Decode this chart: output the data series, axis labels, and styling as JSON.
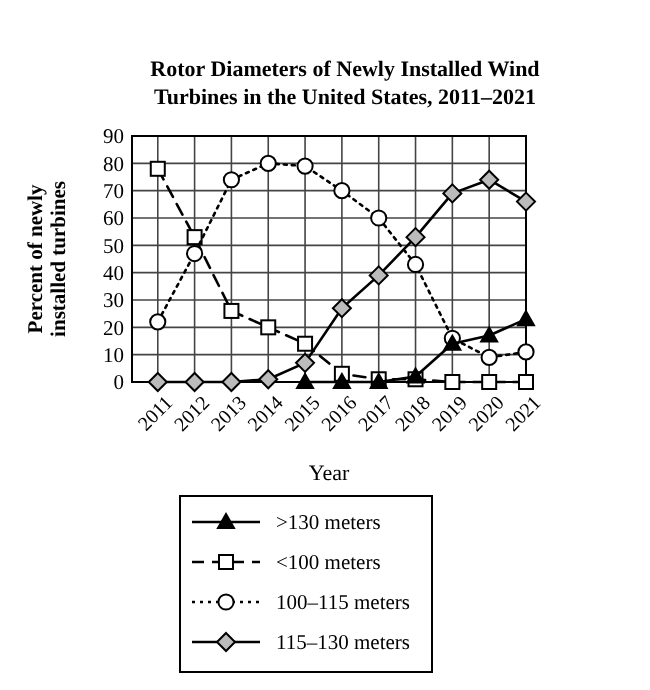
{
  "chart_data": {
    "type": "line",
    "title": "Rotor Diameters of Newly Installed Wind Turbines in the United States, 2011–2021",
    "xlabel": "Year",
    "ylabel": "Percent of newly installed turbines",
    "categories": [
      "2011",
      "2012",
      "2013",
      "2014",
      "2015",
      "2016",
      "2017",
      "2018",
      "2019",
      "2020",
      "2021"
    ],
    "ylim": [
      0,
      90
    ],
    "yticks": [
      0,
      10,
      20,
      30,
      40,
      50,
      60,
      70,
      80,
      90
    ],
    "grid": true,
    "legend": "bottom",
    "series": [
      {
        "name": ">130 meters",
        "color": "#000000",
        "marker": "triangle",
        "line_style": "solid",
        "values": [
          null,
          null,
          null,
          null,
          0,
          0,
          0,
          2,
          14,
          17,
          23
        ]
      },
      {
        "name": "<100 meters",
        "color": "#000000",
        "marker": "square",
        "line_style": "dashed",
        "values": [
          78,
          53,
          26,
          20,
          14,
          3,
          1,
          1,
          0,
          0,
          0
        ]
      },
      {
        "name": "100–115 meters",
        "color": "#000000",
        "marker": "circle",
        "line_style": "dotted",
        "values": [
          22,
          47,
          74,
          80,
          79,
          70,
          60,
          43,
          16,
          9,
          11
        ]
      },
      {
        "name": "115–130 meters",
        "color": "#000000",
        "marker": "diamond",
        "line_style": "solid",
        "values": [
          0,
          0,
          0,
          1,
          7,
          27,
          39,
          53,
          69,
          74,
          66
        ]
      }
    ]
  }
}
